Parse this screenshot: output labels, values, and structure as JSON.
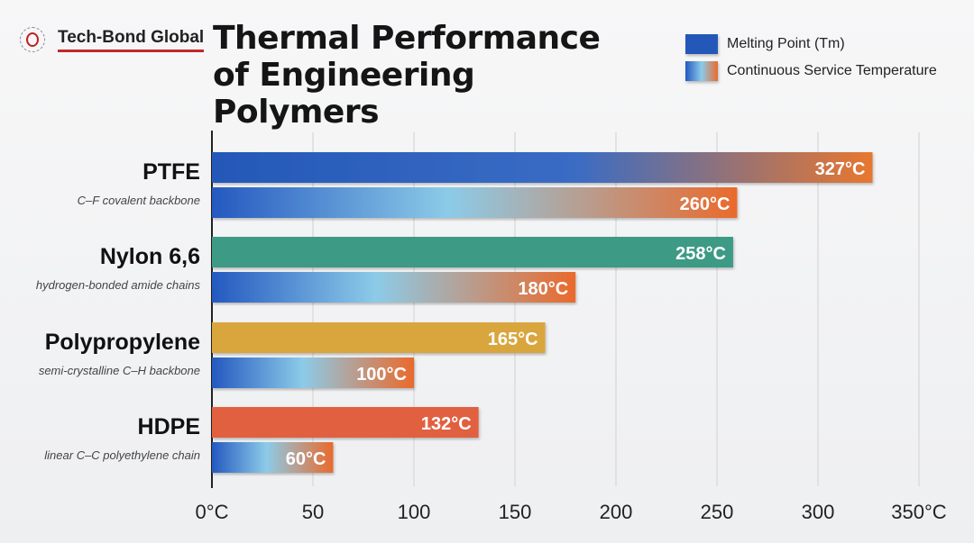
{
  "brand": "Tech-Bond Global",
  "chart_data": {
    "type": "bar",
    "orientation": "horizontal",
    "title": "Thermal Performance of Engineering Polymers",
    "categories": [
      "PTFE",
      "Nylon 6,6",
      "Polypropylene",
      "HDPE"
    ],
    "subtitles": [
      "C–F covalent backbone",
      "hydrogen-bonded amide chains",
      "semi-crystalline C–H backbone",
      "linear C–C polyethylene chain"
    ],
    "series": [
      {
        "name": "Melting Point (Tm)",
        "values": [
          327,
          258,
          165,
          132
        ],
        "labels": [
          "327°C",
          "258°C",
          "165°C",
          "132°C"
        ]
      },
      {
        "name": "Continuous Service Temperature",
        "values": [
          260,
          180,
          100,
          60
        ],
        "labels": [
          "260°C",
          "180°C",
          "100°C",
          "60°C"
        ]
      }
    ],
    "xlim": [
      0,
      350
    ],
    "xticks": [
      "0°C",
      "50",
      "100",
      "150",
      "200",
      "250",
      "300",
      "350°C"
    ],
    "grid": true,
    "legend": "top-right",
    "colors": {
      "melt": [
        "#2458b8",
        "#3d9a85",
        "#d9a53c",
        "#e0603f"
      ],
      "ptfe_melt_end": "#e8772f",
      "service": [
        "#2459c0",
        "#8ccbe8",
        "#ea6a2c"
      ]
    }
  }
}
